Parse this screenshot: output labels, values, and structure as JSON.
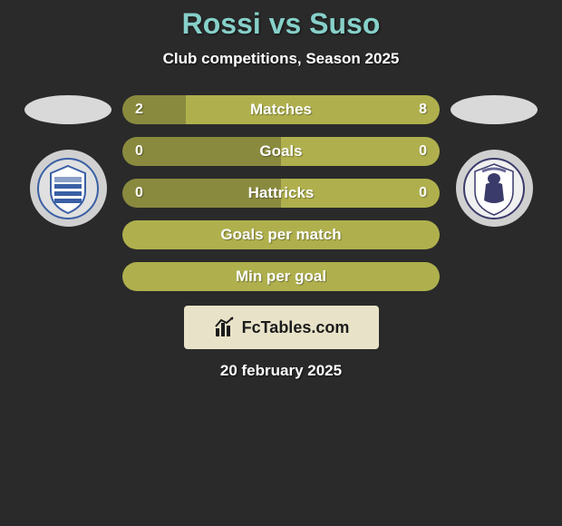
{
  "title_color": "#86d0c9",
  "player_left": "Rossi",
  "player_right": "Suso",
  "vs_text": "vs",
  "subtitle": "Club competitions, Season 2025",
  "date": "20 february 2025",
  "brand_label": "FcTables.com",
  "bar": {
    "height": 32,
    "radius": 16,
    "left_color": "#8a8a3f",
    "right_color": "#afb04d",
    "single_color": "#afb04d",
    "label_fontsize": 17,
    "value_fontsize": 16
  },
  "stats": [
    {
      "label": "Matches",
      "left_value": "2",
      "right_value": "8",
      "left_pct": 20,
      "right_pct": 80,
      "show_values": true
    },
    {
      "label": "Goals",
      "left_value": "0",
      "right_value": "0",
      "left_pct": 50,
      "right_pct": 50,
      "show_values": true
    },
    {
      "label": "Hattricks",
      "left_value": "0",
      "right_value": "0",
      "left_pct": 50,
      "right_pct": 50,
      "show_values": true
    },
    {
      "label": "Goals per match",
      "left_value": "",
      "right_value": "",
      "left_pct": 100,
      "right_pct": 0,
      "show_values": false
    },
    {
      "label": "Min per goal",
      "left_value": "",
      "right_value": "",
      "left_pct": 100,
      "right_pct": 0,
      "show_values": false
    }
  ],
  "badges": {
    "left": {
      "name": "godoy-cruz-badge",
      "primary": "#3a5fa5",
      "secondary": "#ffffff",
      "accent": "#8aa0c8"
    },
    "right": {
      "name": "gimnasia-lp-badge",
      "primary": "#3b3b6b",
      "secondary": "#ffffff",
      "accent": "#6a6a9a"
    }
  },
  "background_color": "#2a2a2a"
}
